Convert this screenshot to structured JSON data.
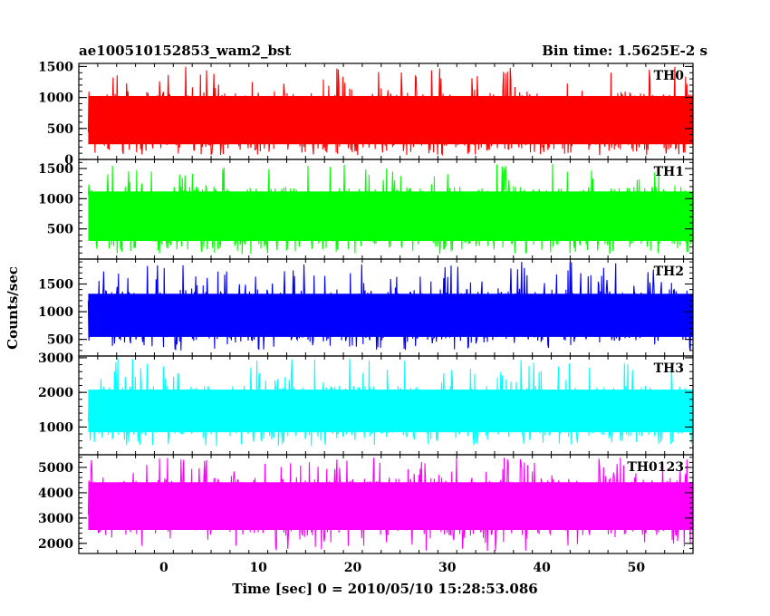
{
  "header": {
    "title": "ae100510152853_wam2_bst",
    "bin_time": "Bin time: 1.5625E-2 s"
  },
  "axes": {
    "ylabel": "Counts/sec",
    "xlabel": "Time [sec] 0 = 2010/05/10 15:28:53.086",
    "x_ticks": [
      0,
      10,
      20,
      30,
      40,
      50
    ],
    "x_range": [
      -9,
      56
    ]
  },
  "chart_data": [
    {
      "type": "line",
      "series_label": "TH0",
      "color": "#ff0000",
      "x_range": [
        -8,
        56
      ],
      "ylim": [
        0,
        1550
      ],
      "y_ticks": [
        0,
        500,
        1000,
        1500
      ],
      "band": {
        "low": 150,
        "high": 1100,
        "min": 70,
        "max": 1500
      }
    },
    {
      "type": "line",
      "series_label": "TH1",
      "color": "#00ff00",
      "x_range": [
        -8,
        56
      ],
      "ylim": [
        0,
        1650
      ],
      "y_ticks": [
        500,
        1000,
        1500
      ],
      "band": {
        "low": 200,
        "high": 1200,
        "min": 80,
        "max": 1600
      }
    },
    {
      "type": "line",
      "series_label": "TH2",
      "color": "#0000ff",
      "x_range": [
        -8,
        56
      ],
      "ylim": [
        200,
        1950
      ],
      "y_ticks": [
        500,
        1000,
        1500
      ],
      "band": {
        "low": 450,
        "high": 1400,
        "min": 300,
        "max": 1900
      }
    },
    {
      "type": "line",
      "series_label": "TH3",
      "color": "#00ffff",
      "x_range": [
        -8,
        56
      ],
      "ylim": [
        200,
        3050
      ],
      "y_ticks": [
        1000,
        2000,
        3000
      ],
      "band": {
        "low": 700,
        "high": 2200,
        "min": 450,
        "max": 3000
      }
    },
    {
      "type": "line",
      "series_label": "TH0123",
      "color": "#ff00ff",
      "x_range": [
        -8,
        56
      ],
      "ylim": [
        1600,
        5500
      ],
      "y_ticks": [
        2000,
        3000,
        4000,
        5000
      ],
      "band": {
        "low": 2300,
        "high": 4600,
        "min": 1700,
        "max": 5400
      }
    }
  ]
}
